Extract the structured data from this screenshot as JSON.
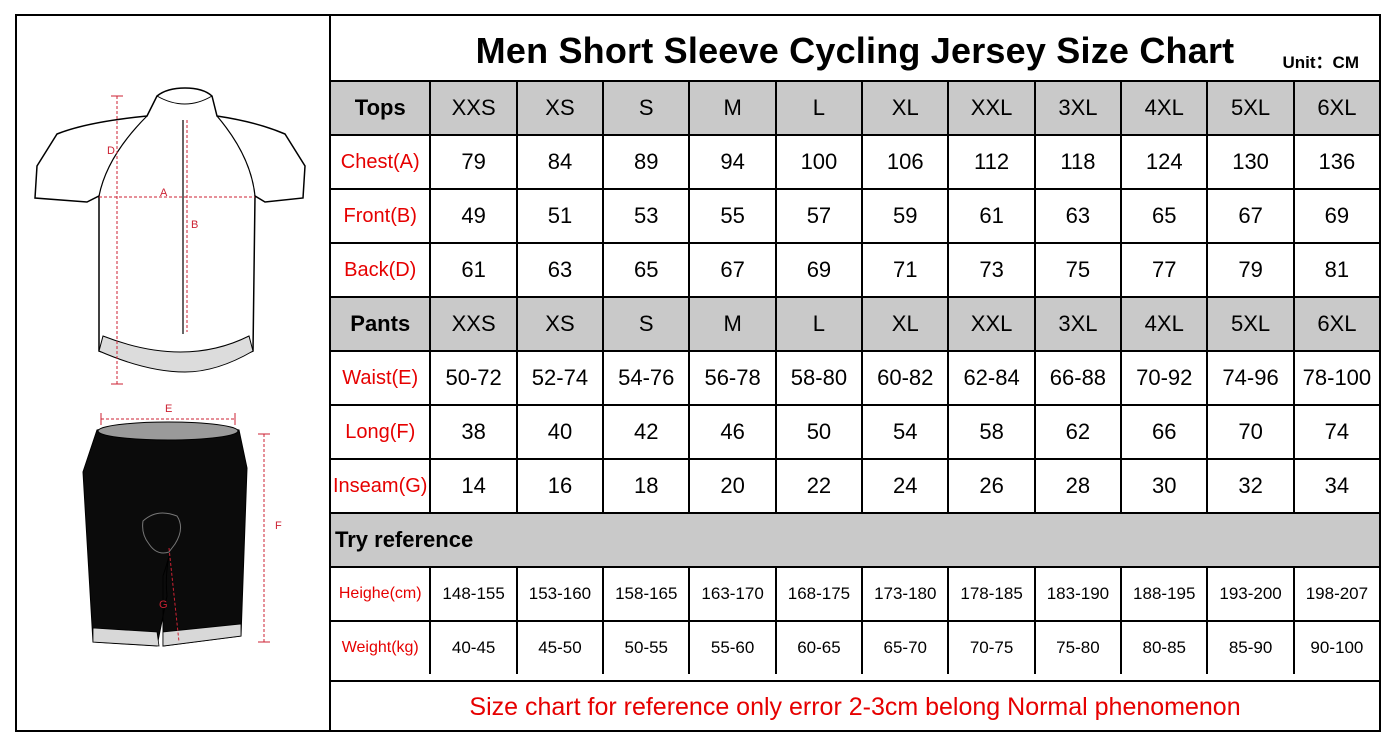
{
  "title": "Men Short Sleeve Cycling Jersey Size Chart",
  "unit": "Unit：CM",
  "illustration": {
    "jersey_labels": [
      "D",
      "A",
      "B"
    ],
    "shorts_labels": [
      "E",
      "F",
      "G"
    ]
  },
  "tops": {
    "header": "Tops",
    "sizes": [
      "XXS",
      "XS",
      "S",
      "M",
      "L",
      "XL",
      "XXL",
      "3XL",
      "4XL",
      "5XL",
      "6XL"
    ],
    "rows": [
      {
        "label": "Chest(A)",
        "values": [
          "79",
          "84",
          "89",
          "94",
          "100",
          "106",
          "112",
          "118",
          "124",
          "130",
          "136"
        ]
      },
      {
        "label": "Front(B)",
        "values": [
          "49",
          "51",
          "53",
          "55",
          "57",
          "59",
          "61",
          "63",
          "65",
          "67",
          "69"
        ]
      },
      {
        "label": "Back(D)",
        "values": [
          "61",
          "63",
          "65",
          "67",
          "69",
          "71",
          "73",
          "75",
          "77",
          "79",
          "81"
        ]
      }
    ]
  },
  "pants": {
    "header": "Pants",
    "sizes": [
      "XXS",
      "XS",
      "S",
      "M",
      "L",
      "XL",
      "XXL",
      "3XL",
      "4XL",
      "5XL",
      "6XL"
    ],
    "rows": [
      {
        "label": "Waist(E)",
        "values": [
          "50-72",
          "52-74",
          "54-76",
          "56-78",
          "58-80",
          "60-82",
          "62-84",
          "66-88",
          "70-92",
          "74-96",
          "78-100"
        ]
      },
      {
        "label": "Long(F)",
        "values": [
          "38",
          "40",
          "42",
          "46",
          "50",
          "54",
          "58",
          "62",
          "66",
          "70",
          "74"
        ]
      },
      {
        "label": "Inseam(G)",
        "values": [
          "14",
          "16",
          "18",
          "20",
          "22",
          "24",
          "26",
          "28",
          "30",
          "32",
          "34"
        ]
      }
    ]
  },
  "reference": {
    "header": "Try reference",
    "rows": [
      {
        "label": "Heighe(cm)",
        "values": [
          "148-155",
          "153-160",
          "158-165",
          "163-170",
          "168-175",
          "173-180",
          "178-185",
          "183-190",
          "188-195",
          "193-200",
          "198-207"
        ]
      },
      {
        "label": "Weight(kg)",
        "values": [
          "40-45",
          "45-50",
          "50-55",
          "55-60",
          "60-65",
          "65-70",
          "70-75",
          "75-80",
          "80-85",
          "85-90",
          "90-100"
        ]
      }
    ]
  },
  "footnote": "Size chart for reference only error 2-3cm belong Normal phenomenon"
}
